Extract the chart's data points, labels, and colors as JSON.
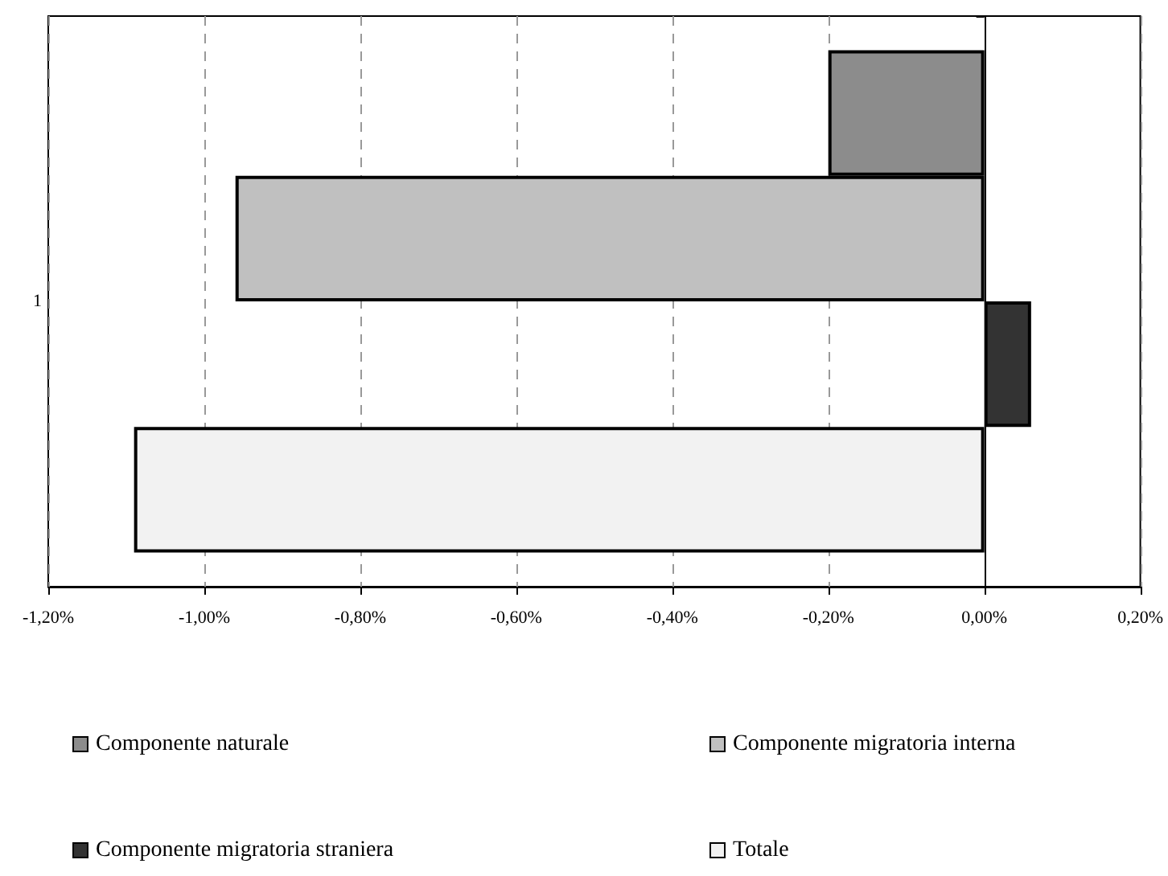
{
  "chart_data": {
    "type": "bar",
    "orientation": "horizontal",
    "categories": [
      "1"
    ],
    "series": [
      {
        "name": "Componente naturale",
        "color": "#8c8c8c",
        "values": [
          -0.2
        ]
      },
      {
        "name": "Componente migratoria interna",
        "color": "#c0c0c0",
        "values": [
          -0.96
        ]
      },
      {
        "name": "Componente migratoria straniera",
        "color": "#333333",
        "values": [
          0.06
        ]
      },
      {
        "name": "Totale",
        "color": "#f2f2f2",
        "values": [
          -1.09
        ]
      }
    ],
    "xlim": [
      -1.2,
      0.2
    ],
    "xticks": [
      {
        "value": -1.2,
        "label": "-1,20%"
      },
      {
        "value": -1.0,
        "label": "-1,00%"
      },
      {
        "value": -0.8,
        "label": "-0,80%"
      },
      {
        "value": -0.6,
        "label": "-0,60%"
      },
      {
        "value": -0.4,
        "label": "-0,40%"
      },
      {
        "value": -0.2,
        "label": "-0,20%"
      },
      {
        "value": 0.0,
        "label": "0,00%"
      },
      {
        "value": 0.2,
        "label": "0,20%"
      }
    ],
    "grid": "x",
    "legend": "bottom"
  }
}
